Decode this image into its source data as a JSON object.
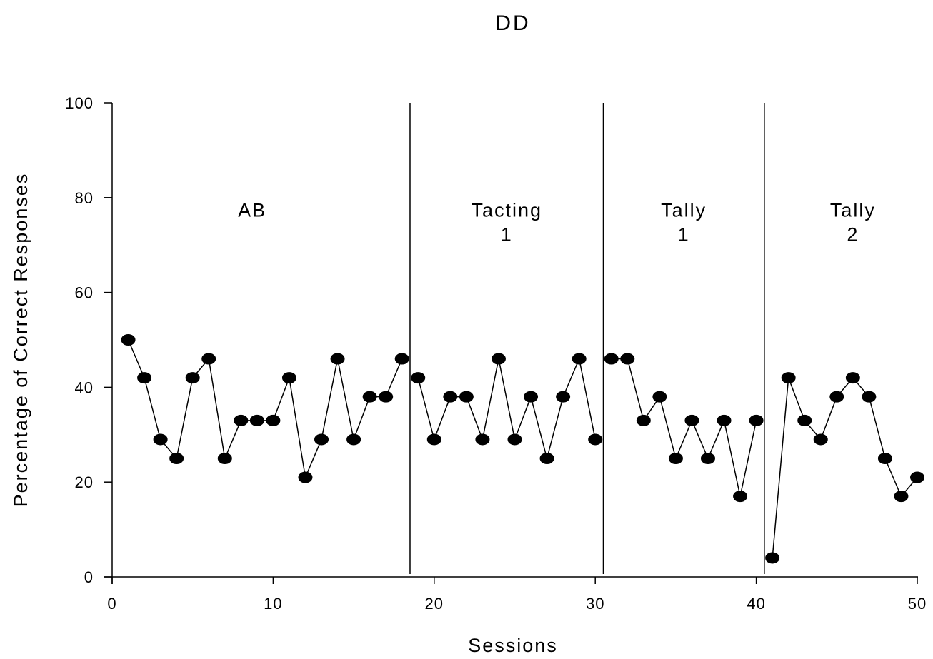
{
  "chart_data": {
    "type": "line",
    "title": "DD",
    "xlabel": "Sessions",
    "ylabel": "Percentage of Correct Responses",
    "xlim": [
      0,
      50
    ],
    "ylim": [
      0,
      100
    ],
    "x_ticks": [
      0,
      10,
      20,
      30,
      40,
      50
    ],
    "y_ticks": [
      0,
      20,
      40,
      60,
      80,
      100
    ],
    "grid": false,
    "legend": "none",
    "marker_color": "#000000",
    "phase_changes": [
      18.5,
      30.5,
      40.5
    ],
    "phases": [
      {
        "label_lines": [
          "AB"
        ],
        "label_x": 8.7,
        "label_y": 76
      },
      {
        "label_lines": [
          "Tacting",
          "1"
        ],
        "label_x": 24.5,
        "label_y": 76
      },
      {
        "label_lines": [
          "Tally",
          "1"
        ],
        "label_x": 35.5,
        "label_y": 76
      },
      {
        "label_lines": [
          "Tally",
          "2"
        ],
        "label_x": 46,
        "label_y": 76
      }
    ],
    "series": [
      {
        "segments": [
          {
            "x": [
              1,
              2,
              3,
              4,
              5,
              6,
              7,
              8,
              9,
              10,
              11,
              12,
              13,
              14,
              15,
              16,
              17,
              18
            ],
            "y": [
              50,
              42,
              29,
              25,
              42,
              46,
              25,
              33,
              33,
              33,
              42,
              21,
              29,
              46,
              29,
              38,
              38,
              46
            ]
          },
          {
            "x": [
              19,
              20,
              21,
              22,
              23,
              24,
              25,
              26,
              27,
              28,
              29,
              30
            ],
            "y": [
              42,
              29,
              38,
              38,
              29,
              46,
              29,
              38,
              25,
              38,
              46,
              29
            ]
          },
          {
            "x": [
              31,
              32,
              33,
              34,
              35,
              36,
              37,
              38,
              39,
              40
            ],
            "y": [
              46,
              46,
              33,
              38,
              25,
              33,
              25,
              33,
              17,
              33
            ]
          },
          {
            "x": [
              41,
              42,
              43,
              44,
              45,
              46,
              47,
              48,
              49,
              50
            ],
            "y": [
              4,
              42,
              33,
              29,
              38,
              42,
              38,
              25,
              17,
              21
            ]
          }
        ]
      }
    ]
  }
}
